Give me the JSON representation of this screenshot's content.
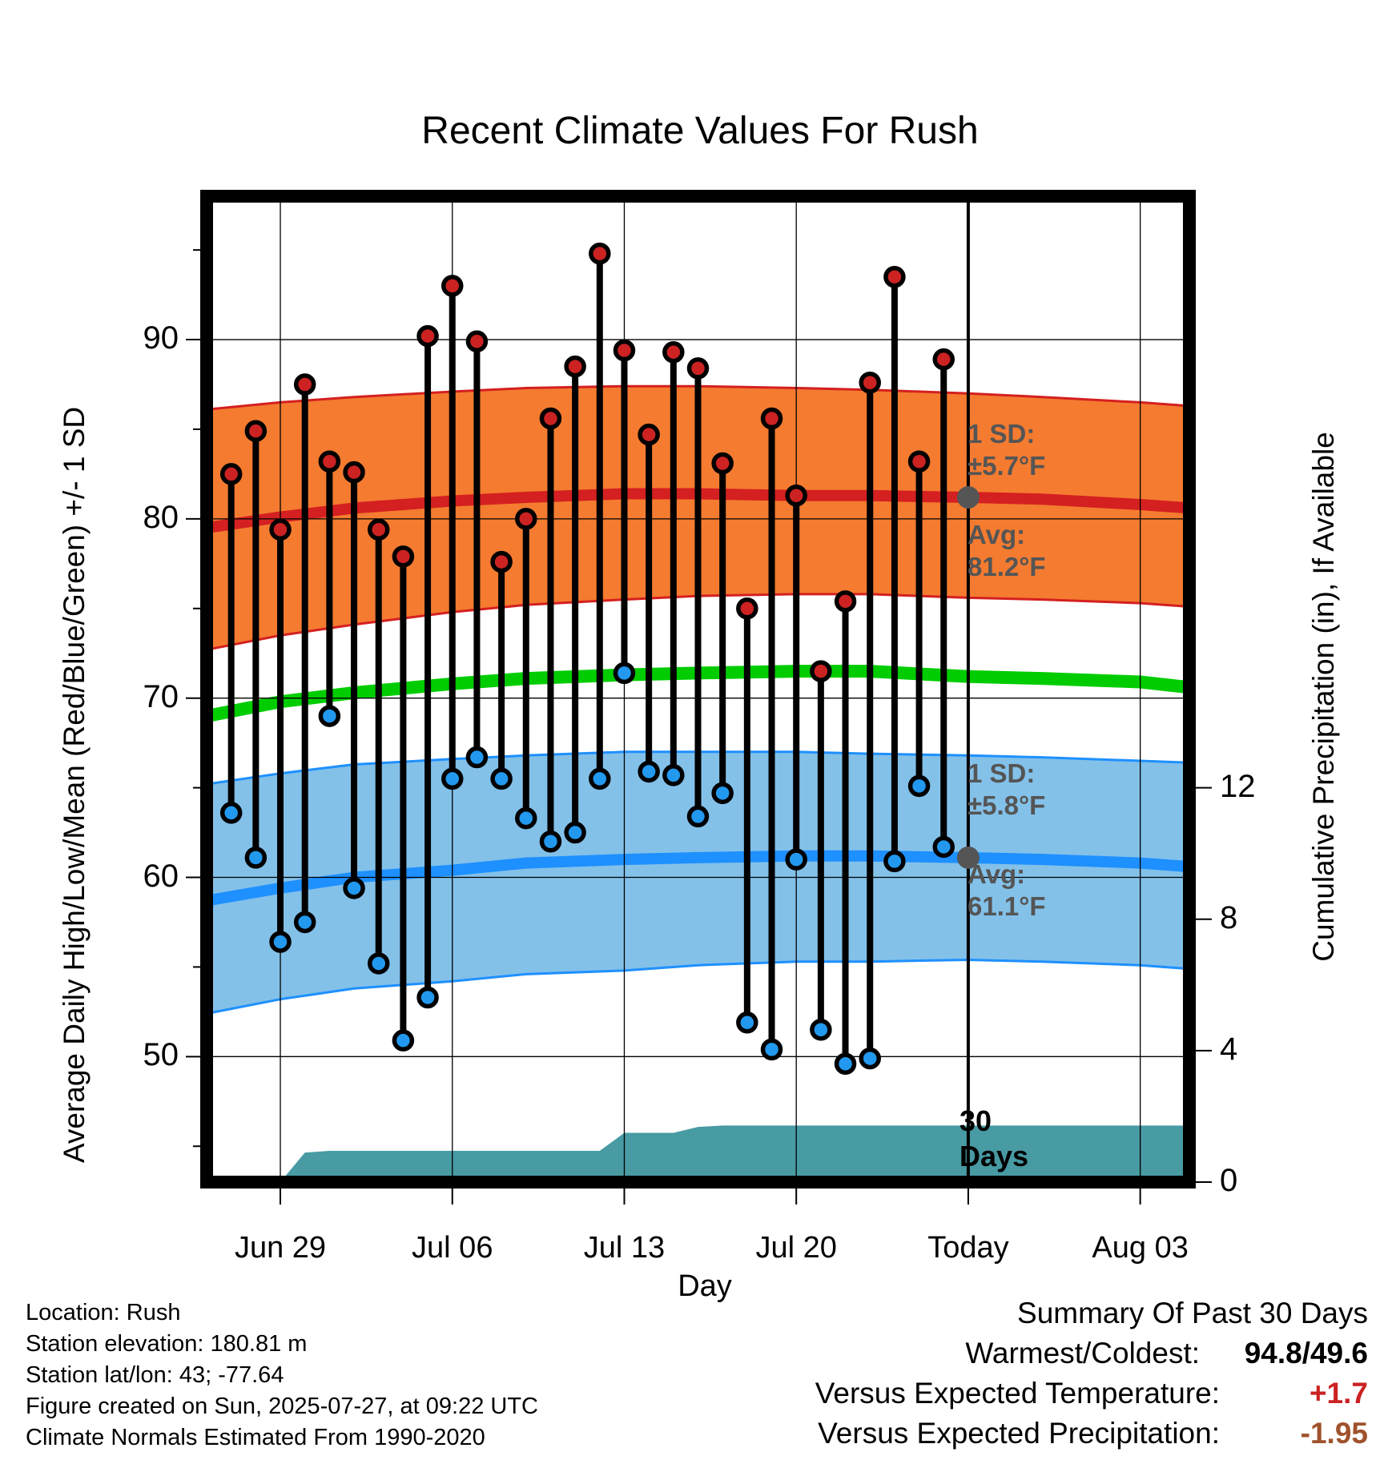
{
  "title": "Recent Climate Values For Rush",
  "xlabel": "Day",
  "ylabel_left": "Average Daily High/Low/Mean (Red/Blue/Green) +/- 1 SD",
  "ylabel_right": "Cumulative Precipitation (in), If Available",
  "colors": {
    "high_band": "#f47b30",
    "high_line": "#d42020",
    "low_band": "#83c1e9",
    "low_line": "#1e90ff",
    "mean_line": "#00cc00",
    "precip_fill": "#489aa3",
    "high_marker": "#cc2222",
    "low_marker": "#2299ee",
    "annotation": "#555555",
    "temp_anomaly": "#cc2222",
    "precip_anomaly": "#a0522d"
  },
  "annotations": {
    "high_sd_line1": "1 SD:",
    "high_sd_line2": "±5.7°F",
    "high_avg_line1": "Avg:",
    "high_avg_line2": "81.2°F",
    "low_sd_line1": "1 SD:",
    "low_sd_line2": "±5.8°F",
    "low_avg_line1": "Avg:",
    "low_avg_line2": "61.1°F",
    "days_line1": "30",
    "days_line2": "Days"
  },
  "metadata": {
    "location": "Location: Rush",
    "elevation": "Station elevation: 180.81 m",
    "latlon": "Station lat/lon: 43; -77.64",
    "created": "Figure created on Sun, 2025-07-27, at 09:22 UTC",
    "normals": "Climate Normals Estimated From 1990-2020"
  },
  "summary": {
    "title": "Summary Of Past 30 Days",
    "warm_cold_label": "Warmest/Coldest:",
    "warm_cold_value": "94.8/49.6",
    "temp_label": "Versus Expected Temperature:",
    "temp_value": "+1.7",
    "precip_label": "Versus Expected Precipitation:",
    "precip_value": "-1.95"
  },
  "chart_data": {
    "type": "line",
    "x_axis": {
      "start": "2025-06-26",
      "end": "2025-08-05",
      "ticks": [
        {
          "date": "2025-06-29",
          "label": "Jun 29"
        },
        {
          "date": "2025-07-06",
          "label": "Jul 06"
        },
        {
          "date": "2025-07-13",
          "label": "Jul 13"
        },
        {
          "date": "2025-07-20",
          "label": "Jul 20"
        },
        {
          "date": "2025-07-27",
          "label": "Today"
        },
        {
          "date": "2025-08-03",
          "label": "Aug 03"
        }
      ],
      "today": "2025-07-27"
    },
    "y_left": {
      "min": 43,
      "max": 98,
      "ticks": [
        50,
        60,
        70,
        80,
        90
      ],
      "minor_step": 5
    },
    "y_right": {
      "min": 0,
      "max": 30,
      "ticks": [
        0,
        4,
        8,
        12
      ]
    },
    "grid": true,
    "daily_observations": {
      "dates": [
        "2025-06-27",
        "2025-06-28",
        "2025-06-29",
        "2025-06-30",
        "2025-07-01",
        "2025-07-02",
        "2025-07-03",
        "2025-07-04",
        "2025-07-05",
        "2025-07-06",
        "2025-07-07",
        "2025-07-08",
        "2025-07-09",
        "2025-07-10",
        "2025-07-11",
        "2025-07-12",
        "2025-07-13",
        "2025-07-14",
        "2025-07-15",
        "2025-07-16",
        "2025-07-17",
        "2025-07-18",
        "2025-07-19",
        "2025-07-20",
        "2025-07-21",
        "2025-07-22",
        "2025-07-23",
        "2025-07-24",
        "2025-07-25",
        "2025-07-26"
      ],
      "high": [
        82.5,
        84.9,
        79.4,
        87.5,
        83.2,
        82.6,
        79.4,
        77.9,
        90.2,
        93.0,
        89.9,
        77.6,
        80.0,
        85.6,
        88.5,
        94.8,
        89.4,
        84.7,
        89.3,
        88.4,
        83.1,
        75.0,
        85.6,
        81.3,
        71.5,
        75.4,
        87.6,
        93.5,
        83.2,
        88.9
      ],
      "low": [
        63.6,
        61.1,
        56.4,
        57.5,
        69.0,
        59.4,
        55.2,
        50.9,
        53.3,
        65.5,
        66.7,
        65.5,
        63.3,
        62.0,
        62.5,
        65.5,
        71.4,
        65.9,
        65.7,
        63.4,
        64.7,
        51.9,
        50.4,
        61.0,
        51.5,
        49.6,
        49.9,
        60.9,
        65.1,
        61.7
      ]
    },
    "normals": {
      "dates": [
        "2025-06-26",
        "2025-06-29",
        "2025-07-02",
        "2025-07-06",
        "2025-07-09",
        "2025-07-13",
        "2025-07-16",
        "2025-07-20",
        "2025-07-23",
        "2025-07-27",
        "2025-07-30",
        "2025-08-03",
        "2025-08-05"
      ],
      "high_avg": [
        79.5,
        80.1,
        80.6,
        81.0,
        81.2,
        81.4,
        81.4,
        81.3,
        81.3,
        81.2,
        81.1,
        80.8,
        80.6
      ],
      "high_upper": [
        86.1,
        86.5,
        86.8,
        87.1,
        87.3,
        87.4,
        87.4,
        87.3,
        87.2,
        87.0,
        86.8,
        86.5,
        86.3
      ],
      "high_lower": [
        72.7,
        73.5,
        74.1,
        74.8,
        75.2,
        75.5,
        75.7,
        75.8,
        75.8,
        75.6,
        75.5,
        75.3,
        75.1
      ],
      "mean": [
        69.0,
        69.8,
        70.3,
        70.8,
        71.1,
        71.3,
        71.4,
        71.5,
        71.5,
        71.2,
        71.1,
        70.9,
        70.6
      ],
      "low_avg": [
        58.7,
        59.4,
        60.0,
        60.4,
        60.8,
        61.0,
        61.1,
        61.2,
        61.2,
        61.1,
        61.0,
        60.8,
        60.6
      ],
      "low_upper": [
        65.2,
        65.8,
        66.3,
        66.6,
        66.8,
        67.0,
        67.0,
        67.0,
        66.9,
        66.8,
        66.7,
        66.5,
        66.4
      ],
      "low_lower": [
        52.4,
        53.2,
        53.8,
        54.2,
        54.6,
        54.8,
        55.1,
        55.3,
        55.3,
        55.4,
        55.3,
        55.1,
        54.9
      ]
    },
    "precipitation": {
      "dates": [
        "2025-06-26",
        "2025-06-29",
        "2025-06-30",
        "2025-07-01",
        "2025-07-12",
        "2025-07-13",
        "2025-07-15",
        "2025-07-16",
        "2025-07-17",
        "2025-07-27",
        "2025-08-05"
      ],
      "cumulative": [
        0.0,
        0.0,
        0.9,
        0.95,
        0.95,
        1.5,
        1.5,
        1.68,
        1.72,
        1.72,
        1.72
      ]
    }
  }
}
